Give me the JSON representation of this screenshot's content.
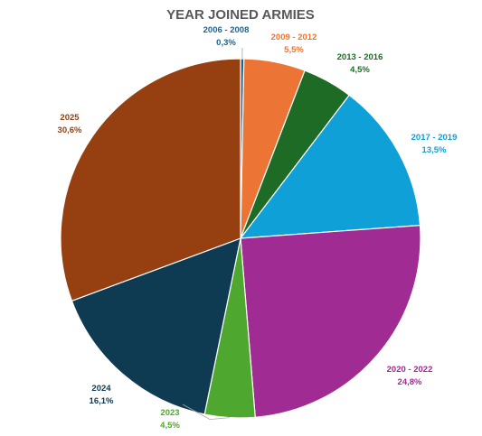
{
  "chart_data": {
    "type": "pie",
    "title": "YEAR JOINED ARMIES",
    "slices": [
      {
        "label": "2006 - 2008",
        "value": 0.3,
        "display": "0,3%",
        "color": "#1f6391"
      },
      {
        "label": "2009 - 2012",
        "value": 5.5,
        "display": "5,5%",
        "color": "#ec7535"
      },
      {
        "label": "2013 - 2016",
        "value": 4.5,
        "display": "4,5%",
        "color": "#1e6b25"
      },
      {
        "label": "2017 - 2019",
        "value": 13.5,
        "display": "13,5%",
        "color": "#10a0d8"
      },
      {
        "label": "2020 - 2022",
        "value": 24.8,
        "display": "24,8%",
        "color": "#a02b93"
      },
      {
        "label": "2023",
        "value": 4.5,
        "display": "4,5%",
        "color": "#4ea72e"
      },
      {
        "label": "2024",
        "value": 16.1,
        "display": "16,1%",
        "color": "#0e3a52"
      },
      {
        "label": "2025",
        "value": 30.6,
        "display": "30,6%",
        "color": "#964011"
      }
    ],
    "label_colors": [
      "#1f6391",
      "#ec7535",
      "#1e6b25",
      "#10a0d8",
      "#a02b93",
      "#4ea72e",
      "#0e3a52",
      "#964011"
    ]
  }
}
